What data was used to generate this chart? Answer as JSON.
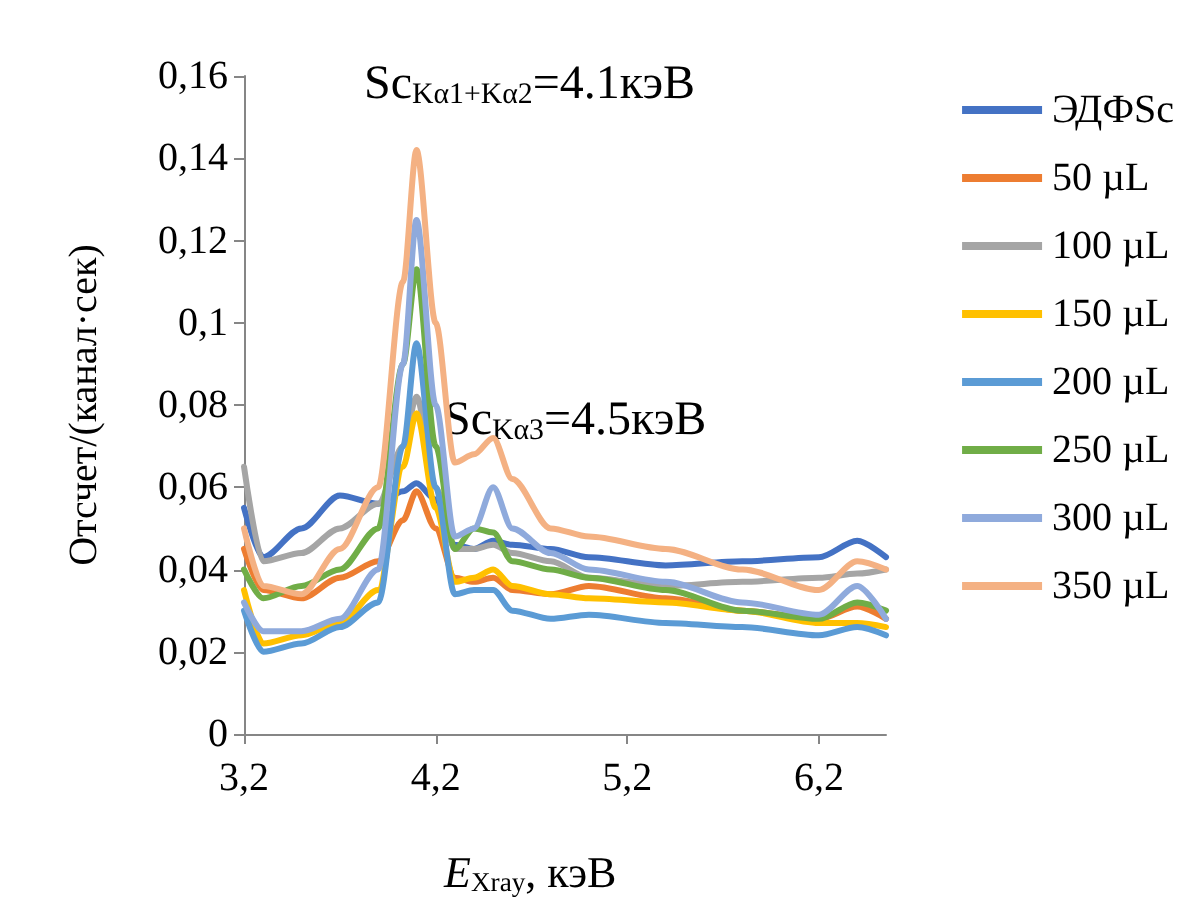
{
  "chart_data": {
    "type": "line",
    "xlabel": "E$_{Xray}$, кэВ",
    "ylabel": "Отсчет/(канал·сек)",
    "annotations": [
      "Sc$_{Kα1+Kα2}$=4.1кэВ",
      "Sc$_{Kα3}$=4.5кэВ"
    ],
    "x": [
      3.2,
      3.3,
      3.5,
      3.7,
      3.9,
      4.03,
      4.1,
      4.2,
      4.3,
      4.4,
      4.5,
      4.6,
      4.8,
      5.0,
      5.4,
      5.8,
      6.2,
      6.4,
      6.55
    ],
    "series": [
      {
        "name": "ЭДФSc",
        "color": "#4472c4",
        "values": [
          0.055,
          0.043,
          0.05,
          0.058,
          0.056,
          0.059,
          0.061,
          0.057,
          0.046,
          0.045,
          0.047,
          0.046,
          0.045,
          0.043,
          0.041,
          0.042,
          0.043,
          0.047,
          0.043
        ]
      },
      {
        "name": "50 µL",
        "color": "#ed7d31",
        "values": [
          0.045,
          0.035,
          0.033,
          0.038,
          0.042,
          0.052,
          0.059,
          0.05,
          0.038,
          0.037,
          0.038,
          0.035,
          0.034,
          0.036,
          0.033,
          0.03,
          0.028,
          0.031,
          0.028
        ]
      },
      {
        "name": "100 µL",
        "color": "#a5a5a5",
        "values": [
          0.065,
          0.042,
          0.044,
          0.05,
          0.056,
          0.07,
          0.082,
          0.06,
          0.045,
          0.045,
          0.046,
          0.044,
          0.042,
          0.038,
          0.036,
          0.037,
          0.038,
          0.039,
          0.04
        ]
      },
      {
        "name": "150 µL",
        "color": "#ffc000",
        "values": [
          0.035,
          0.022,
          0.024,
          0.027,
          0.035,
          0.065,
          0.078,
          0.055,
          0.037,
          0.038,
          0.04,
          0.036,
          0.034,
          0.033,
          0.032,
          0.03,
          0.027,
          0.027,
          0.026
        ]
      },
      {
        "name": "200 µL",
        "color": "#5b9bd5",
        "values": [
          0.03,
          0.02,
          0.022,
          0.026,
          0.032,
          0.07,
          0.095,
          0.06,
          0.034,
          0.035,
          0.035,
          0.03,
          0.028,
          0.029,
          0.027,
          0.026,
          0.024,
          0.026,
          0.024
        ]
      },
      {
        "name": "250 µL",
        "color": "#70ad47",
        "values": [
          0.04,
          0.033,
          0.036,
          0.04,
          0.05,
          0.09,
          0.113,
          0.07,
          0.045,
          0.05,
          0.049,
          0.042,
          0.04,
          0.038,
          0.035,
          0.03,
          0.028,
          0.032,
          0.03
        ]
      },
      {
        "name": "300 µL",
        "color": "#8faadc",
        "values": [
          0.032,
          0.025,
          0.025,
          0.028,
          0.04,
          0.09,
          0.125,
          0.08,
          0.048,
          0.05,
          0.06,
          0.05,
          0.044,
          0.04,
          0.037,
          0.032,
          0.029,
          0.036,
          0.028
        ]
      },
      {
        "name": "350 µL",
        "color": "#f4b183",
        "values": [
          0.05,
          0.036,
          0.034,
          0.045,
          0.06,
          0.11,
          0.142,
          0.1,
          0.066,
          0.068,
          0.072,
          0.062,
          0.05,
          0.048,
          0.045,
          0.04,
          0.035,
          0.042,
          0.04
        ]
      }
    ],
    "xlim": [
      3.2,
      6.55
    ],
    "xticks": [
      {
        "value": 3.2,
        "label": "3,2"
      },
      {
        "value": 4.2,
        "label": "4,2"
      },
      {
        "value": 5.2,
        "label": "5,2"
      },
      {
        "value": 6.2,
        "label": "6,2"
      }
    ],
    "ylim": [
      0,
      0.16
    ],
    "yticks": [
      {
        "value": 0,
        "label": "0"
      },
      {
        "value": 0.02,
        "label": "0,02"
      },
      {
        "value": 0.04,
        "label": "0,04"
      },
      {
        "value": 0.06,
        "label": "0,06"
      },
      {
        "value": 0.08,
        "label": "0,08"
      },
      {
        "value": 0.1,
        "label": "0,1"
      },
      {
        "value": 0.12,
        "label": "0,12"
      },
      {
        "value": 0.14,
        "label": "0,14"
      },
      {
        "value": 0.16,
        "label": "0,16"
      }
    ],
    "grid": false,
    "legend": "right",
    "marker": "none",
    "line_style": "solid"
  }
}
